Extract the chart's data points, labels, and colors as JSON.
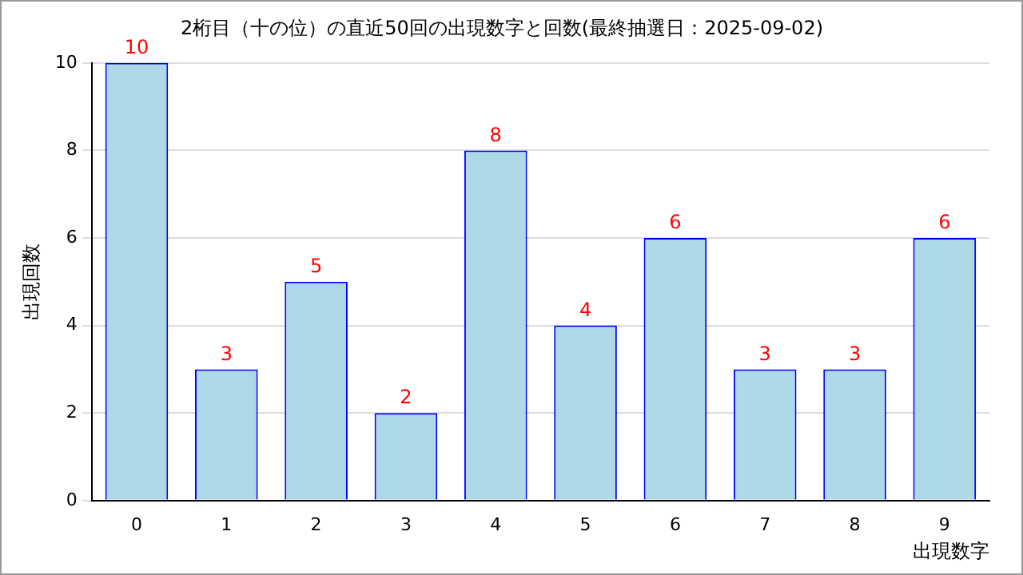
{
  "chart_data": {
    "type": "bar",
    "title": "2桁目（十の位）の直近50回の出現数字と回数(最終抽選日：2025-09-02)",
    "xlabel": "出現数字",
    "ylabel": "出現回数",
    "categories": [
      "0",
      "1",
      "2",
      "3",
      "4",
      "5",
      "6",
      "7",
      "8",
      "9"
    ],
    "values": [
      10,
      3,
      5,
      2,
      8,
      4,
      6,
      3,
      3,
      6
    ],
    "color": "#add8e6",
    "ylim": [
      0,
      10
    ],
    "yticks": [
      0,
      2,
      4,
      6,
      8,
      10
    ],
    "grid": "y",
    "data_labels": true,
    "legend": false
  }
}
